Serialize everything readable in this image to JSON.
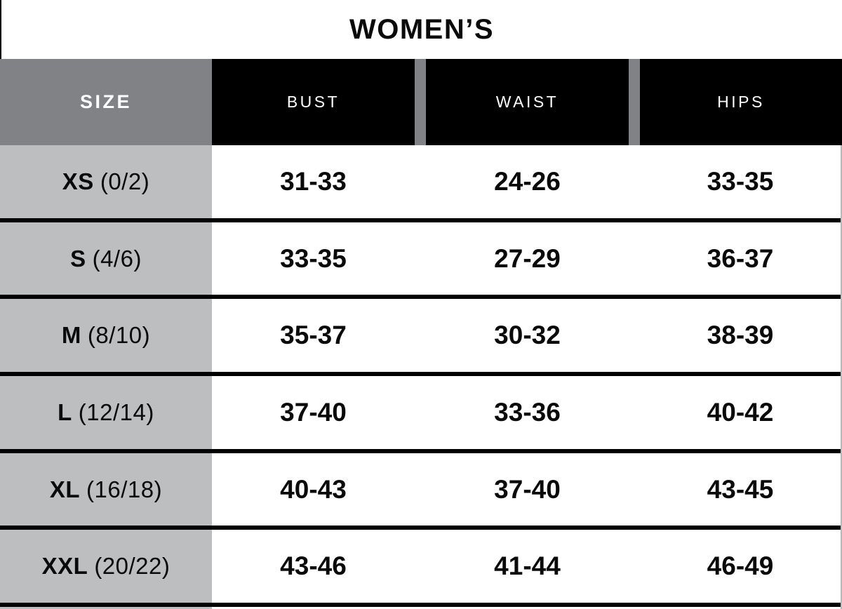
{
  "title": "WOMEN’S",
  "header": {
    "size": "SIZE",
    "bust": "BUST",
    "waist": "WAIST",
    "hips": "HIPS"
  },
  "rows": [
    {
      "size": "XS",
      "detail": "(0/2)",
      "bust": "31-33",
      "waist": "24-26",
      "hips": "33-35"
    },
    {
      "size": "S",
      "detail": "(4/6)",
      "bust": "33-35",
      "waist": "27-29",
      "hips": "36-37"
    },
    {
      "size": "M",
      "detail": "(8/10)",
      "bust": "35-37",
      "waist": "30-32",
      "hips": "38-39"
    },
    {
      "size": "L",
      "detail": "(12/14)",
      "bust": "37-40",
      "waist": "33-36",
      "hips": "40-42"
    },
    {
      "size": "XL",
      "detail": "(16/18)",
      "bust": "40-43",
      "waist": "37-40",
      "hips": "43-45"
    },
    {
      "size": "XXL",
      "detail": "(20/22)",
      "bust": "43-46",
      "waist": "41-44",
      "hips": "46-49"
    }
  ],
  "colors": {
    "header_size_gray": "#808285",
    "size_column_gray": "#bcbec0",
    "header_cell_black": "#000000",
    "separator_black": "#000000",
    "header_text_white": "#ffffff",
    "body_text_black": "#0a0a0a"
  },
  "chart_data": {
    "type": "table",
    "title": "WOMEN’S",
    "columns": [
      "SIZE",
      "BUST",
      "WAIST",
      "HIPS"
    ],
    "rows": [
      [
        "XS (0/2)",
        "31-33",
        "24-26",
        "33-35"
      ],
      [
        "S (4/6)",
        "33-35",
        "27-29",
        "36-37"
      ],
      [
        "M (8/10)",
        "35-37",
        "30-32",
        "38-39"
      ],
      [
        "L (12/14)",
        "37-40",
        "33-36",
        "40-42"
      ],
      [
        "XL (16/18)",
        "40-43",
        "37-40",
        "43-45"
      ],
      [
        "XXL (20/22)",
        "43-46",
        "41-44",
        "46-49"
      ]
    ]
  }
}
